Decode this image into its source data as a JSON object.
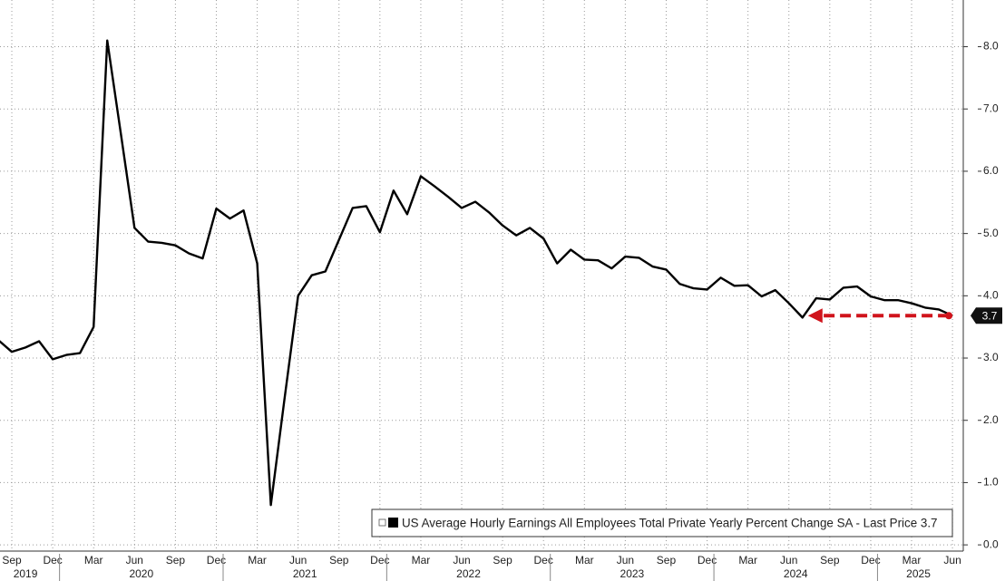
{
  "chart_data": {
    "type": "line",
    "x": [
      "2019-08",
      "2019-09",
      "2019-10",
      "2019-11",
      "2019-12",
      "2020-01",
      "2020-02",
      "2020-03",
      "2020-04",
      "2020-05",
      "2020-06",
      "2020-07",
      "2020-08",
      "2020-09",
      "2020-10",
      "2020-11",
      "2020-12",
      "2021-01",
      "2021-02",
      "2021-03",
      "2021-04",
      "2021-05",
      "2021-06",
      "2021-07",
      "2021-08",
      "2021-09",
      "2021-10",
      "2021-11",
      "2021-12",
      "2022-01",
      "2022-02",
      "2022-03",
      "2022-04",
      "2022-05",
      "2022-06",
      "2022-07",
      "2022-08",
      "2022-09",
      "2022-10",
      "2022-11",
      "2022-12",
      "2023-01",
      "2023-02",
      "2023-03",
      "2023-04",
      "2023-05",
      "2023-06",
      "2023-07",
      "2023-08",
      "2023-09",
      "2023-10",
      "2023-11",
      "2023-12",
      "2024-01",
      "2024-02",
      "2024-03",
      "2024-04",
      "2024-05",
      "2024-06",
      "2024-07",
      "2024-08",
      "2024-09",
      "2024-10",
      "2024-11",
      "2024-12",
      "2025-01",
      "2025-02",
      "2025-03",
      "2025-04",
      "2025-05",
      "2025-06"
    ],
    "series": [
      {
        "name": "US Average Hourly Earnings All Employees Total Private Yearly Percent Change SA - Last Price 3.7",
        "color": "#000000",
        "values": [
          3.29,
          3.1,
          3.17,
          3.27,
          2.98,
          3.05,
          3.08,
          3.5,
          8.1,
          6.6,
          5.09,
          4.87,
          4.85,
          4.81,
          4.68,
          4.6,
          5.4,
          5.24,
          5.37,
          4.52,
          0.64,
          2.34,
          4.0,
          4.33,
          4.39,
          4.9,
          5.41,
          5.44,
          5.02,
          5.69,
          5.31,
          5.92,
          5.76,
          5.59,
          5.41,
          5.51,
          5.34,
          5.13,
          4.97,
          5.09,
          4.92,
          4.52,
          4.74,
          4.58,
          4.57,
          4.44,
          4.63,
          4.61,
          4.47,
          4.42,
          4.19,
          4.12,
          4.1,
          4.29,
          4.16,
          4.17,
          3.99,
          4.09,
          3.88,
          3.65,
          3.96,
          3.94,
          4.13,
          4.15,
          3.99,
          3.93,
          3.93,
          3.88,
          3.81,
          3.78,
          3.68
        ]
      }
    ],
    "last_price_label": "3.7",
    "annotation_color": "#d0141c",
    "ylim": [
      -0.1,
      8.75
    ],
    "yticks": [
      {
        "value": 0,
        "label": "0.0"
      },
      {
        "value": 1,
        "label": "1.0"
      },
      {
        "value": 2,
        "label": "2.0"
      },
      {
        "value": 3,
        "label": "3.0"
      },
      {
        "value": 4,
        "label": "4.0"
      },
      {
        "value": 5,
        "label": "5.0"
      },
      {
        "value": 6,
        "label": "6.0"
      },
      {
        "value": 7,
        "label": "7.0"
      },
      {
        "value": 8,
        "label": "8.0"
      }
    ],
    "xticks": [
      {
        "value": "2019-09",
        "label": "Sep"
      },
      {
        "value": "2019-12",
        "label": "Dec"
      },
      {
        "value": "2020-03",
        "label": "Mar"
      },
      {
        "value": "2020-06",
        "label": "Jun"
      },
      {
        "value": "2020-09",
        "label": "Sep"
      },
      {
        "value": "2020-12",
        "label": "Dec"
      },
      {
        "value": "2021-03",
        "label": "Mar"
      },
      {
        "value": "2021-06",
        "label": "Jun"
      },
      {
        "value": "2021-09",
        "label": "Sep"
      },
      {
        "value": "2021-12",
        "label": "Dec"
      },
      {
        "value": "2022-03",
        "label": "Mar"
      },
      {
        "value": "2022-06",
        "label": "Jun"
      },
      {
        "value": "2022-09",
        "label": "Sep"
      },
      {
        "value": "2022-12",
        "label": "Dec"
      },
      {
        "value": "2023-03",
        "label": "Mar"
      },
      {
        "value": "2023-06",
        "label": "Jun"
      },
      {
        "value": "2023-09",
        "label": "Sep"
      },
      {
        "value": "2023-12",
        "label": "Dec"
      },
      {
        "value": "2024-03",
        "label": "Mar"
      },
      {
        "value": "2024-06",
        "label": "Jun"
      },
      {
        "value": "2024-09",
        "label": "Sep"
      },
      {
        "value": "2024-12",
        "label": "Dec"
      },
      {
        "value": "2025-03",
        "label": "Mar"
      },
      {
        "value": "2025-06",
        "label": "Jun"
      }
    ],
    "year_labels": [
      "2019",
      "2020",
      "2021",
      "2022",
      "2023",
      "2024",
      "2025"
    ],
    "grid": true,
    "y_axis_side": "right",
    "legend": "bottom-right"
  }
}
